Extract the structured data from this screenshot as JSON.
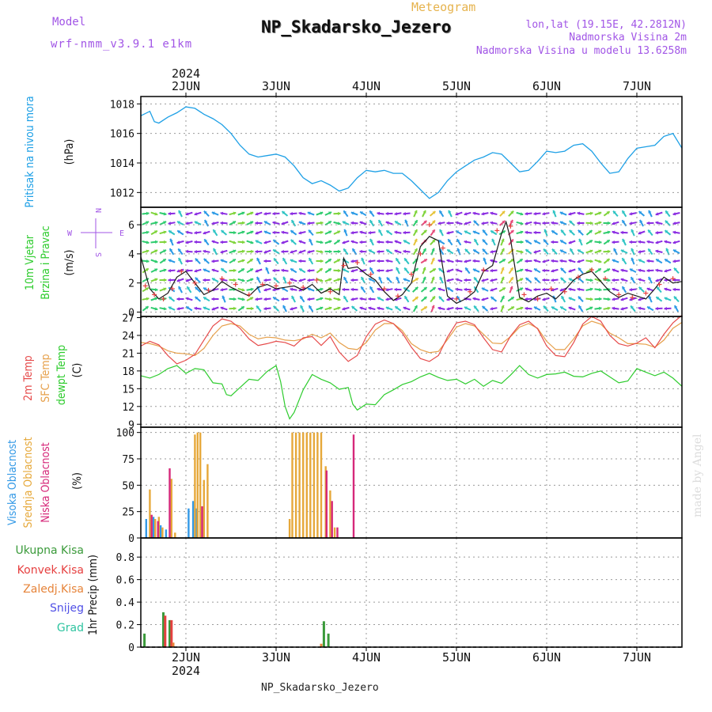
{
  "header": {
    "model_label": "Model",
    "model_name": "wrf-nmm_v3.9.1 e1km",
    "meteogram_label": "Meteogram",
    "station_title": "NP_Skadarsko_Jezero",
    "coord_line": "lon,lat (19.15E, 42.2812N)",
    "elev_line": "Nadmorska Visina 2m",
    "model_elev_line": "Nadmorska Visina u modelu 13.6258m",
    "footer_station": "NP_Skadarsko_Jezero",
    "credit": "made by Angel"
  },
  "colors": {
    "pressure": "#1ea0e6",
    "wind_speed": "#1a1a1a",
    "gust": "#e64040",
    "temp2m": "#e64b4b",
    "sfc_temp": "#e6a04b",
    "dewpt": "#2ecc2e",
    "high_cloud": "#3399e6",
    "mid_cloud": "#e6a83a",
    "low_cloud": "#d6287a",
    "total_rain": "#3a9a3a",
    "conv_rain": "#e64040",
    "frozen_rain": "#e6843a",
    "snow": "#5050e6",
    "hail": "#2ec4a0"
  },
  "chart_data": [
    {
      "type": "line",
      "panel": "pressure",
      "ylabel_main": "Pritisak na nivou mora",
      "unit": "(hPa)",
      "ylim": [
        1011,
        1018.5
      ],
      "yticks": [
        1012,
        1014,
        1016,
        1018
      ],
      "x_range_days": [
        1.5,
        7.5
      ],
      "x_top_labels": [
        "2JUN",
        "3JUN",
        "4JUN",
        "5JUN",
        "6JUN",
        "7JUN"
      ],
      "x_top_year": "2024",
      "x": [
        1.5,
        1.6,
        1.65,
        1.7,
        1.8,
        1.9,
        2.0,
        2.1,
        2.2,
        2.3,
        2.4,
        2.5,
        2.6,
        2.7,
        2.8,
        2.9,
        3.0,
        3.1,
        3.2,
        3.3,
        3.4,
        3.5,
        3.6,
        3.7,
        3.8,
        3.9,
        4.0,
        4.1,
        4.2,
        4.3,
        4.4,
        4.5,
        4.6,
        4.7,
        4.8,
        4.9,
        5.0,
        5.1,
        5.2,
        5.3,
        5.4,
        5.5,
        5.6,
        5.7,
        5.8,
        5.9,
        6.0,
        6.1,
        6.2,
        6.3,
        6.4,
        6.5,
        6.6,
        6.7,
        6.8,
        6.9,
        7.0,
        7.1,
        7.2,
        7.3,
        7.4,
        7.5
      ],
      "values": [
        1017.2,
        1017.5,
        1016.8,
        1016.7,
        1017.1,
        1017.4,
        1017.8,
        1017.7,
        1017.3,
        1017.0,
        1016.6,
        1016.0,
        1015.2,
        1014.6,
        1014.4,
        1014.5,
        1014.6,
        1014.4,
        1013.8,
        1013.0,
        1012.6,
        1012.8,
        1012.5,
        1012.1,
        1012.3,
        1013.0,
        1013.5,
        1013.4,
        1013.5,
        1013.3,
        1013.3,
        1012.8,
        1012.2,
        1011.6,
        1012.0,
        1012.8,
        1013.4,
        1013.8,
        1014.2,
        1014.4,
        1014.7,
        1014.6,
        1014.0,
        1013.4,
        1013.5,
        1014.1,
        1014.8,
        1014.7,
        1014.8,
        1015.2,
        1015.3,
        1014.8,
        1014.0,
        1013.3,
        1013.4,
        1014.3,
        1015.0,
        1015.1,
        1015.2,
        1015.8,
        1016.0,
        1015.0
      ]
    },
    {
      "type": "line",
      "panel": "wind",
      "ylabel_main": "10m Vjetar",
      "ylabel_sub": "Brzina i Pravac",
      "unit": "(m/s)",
      "compass_labels": [
        "N",
        "W",
        "E",
        "S"
      ],
      "ylim": [
        -0.3,
        7.2
      ],
      "yticks": [
        0,
        2,
        4,
        6
      ],
      "wind_speed_x": [
        1.5,
        1.6,
        1.7,
        1.8,
        1.9,
        2.0,
        2.1,
        2.2,
        2.3,
        2.4,
        2.5,
        2.6,
        2.7,
        2.8,
        2.9,
        3.0,
        3.1,
        3.2,
        3.3,
        3.4,
        3.5,
        3.6,
        3.7,
        3.75,
        3.8,
        3.9,
        4.0,
        4.1,
        4.2,
        4.3,
        4.4,
        4.5,
        4.55,
        4.6,
        4.7,
        4.8,
        4.9,
        5.0,
        5.1,
        5.2,
        5.3,
        5.4,
        5.5,
        5.55,
        5.6,
        5.7,
        5.8,
        5.9,
        6.0,
        6.1,
        6.2,
        6.3,
        6.4,
        6.5,
        6.6,
        6.7,
        6.8,
        6.9,
        7.0,
        7.1,
        7.2,
        7.3,
        7.4,
        7.5
      ],
      "wind_speed": [
        3.8,
        1.6,
        0.9,
        1.3,
        2.4,
        2.8,
        2.0,
        1.2,
        1.5,
        2.1,
        1.7,
        1.4,
        1.1,
        1.7,
        1.9,
        1.6,
        1.7,
        1.8,
        1.5,
        1.9,
        1.3,
        1.6,
        1.2,
        3.7,
        3.0,
        3.1,
        2.6,
        2.2,
        1.4,
        0.8,
        1.2,
        2.0,
        3.3,
        4.5,
        5.2,
        4.9,
        1.1,
        0.6,
        0.9,
        1.4,
        2.8,
        3.2,
        5.4,
        6.2,
        5.0,
        1.0,
        0.7,
        1.1,
        1.3,
        0.9,
        1.5,
        2.2,
        2.6,
        2.8,
        2.1,
        1.4,
        1.0,
        1.3,
        1.1,
        0.9,
        1.6,
        2.4,
        2.0,
        2.1
      ],
      "gust_x": [
        1.55,
        1.65,
        1.75,
        1.85,
        1.95,
        2.1,
        2.25,
        2.4,
        2.55,
        2.7,
        2.85,
        3.0,
        3.15,
        3.3,
        3.45,
        3.6,
        3.75,
        3.9,
        4.05,
        4.2,
        4.35,
        4.5,
        4.6,
        4.7,
        4.85,
        5.0,
        5.15,
        5.3,
        5.45,
        5.6,
        5.75,
        5.9,
        6.05,
        6.2,
        6.35,
        6.5,
        6.65,
        6.8,
        6.95,
        7.1,
        7.25,
        7.4
      ],
      "gust": [
        1.8,
        1.2,
        0.9,
        1.6,
        2.8,
        2.0,
        1.5,
        2.3,
        1.9,
        1.2,
        1.9,
        1.8,
        2.0,
        1.7,
        2.2,
        1.4,
        3.2,
        3.4,
        2.6,
        1.6,
        1.1,
        2.6,
        4.0,
        6.0,
        4.4,
        0.9,
        1.4,
        2.9,
        5.6,
        5.9,
        1.2,
        0.9,
        1.6,
        1.4,
        2.4,
        2.9,
        2.3,
        1.2,
        1.0,
        1.3,
        1.9,
        2.3
      ],
      "legend": []
    },
    {
      "type": "line",
      "panel": "temperature",
      "ylabel_lines": [
        "2m Temp",
        "SFC Temp",
        "dewpt Temp"
      ],
      "unit": "(C)",
      "ylim": [
        8.5,
        27.2
      ],
      "yticks": [
        9,
        12,
        15,
        18,
        21,
        24,
        27
      ],
      "temp_x": [
        1.5,
        1.6,
        1.7,
        1.8,
        1.9,
        2.0,
        2.1,
        2.2,
        2.3,
        2.4,
        2.5,
        2.6,
        2.7,
        2.8,
        2.9,
        3.0,
        3.1,
        3.2,
        3.3,
        3.4,
        3.5,
        3.6,
        3.7,
        3.8,
        3.9,
        4.0,
        4.1,
        4.2,
        4.3,
        4.4,
        4.5,
        4.6,
        4.7,
        4.8,
        4.9,
        5.0,
        5.1,
        5.2,
        5.3,
        5.4,
        5.5,
        5.6,
        5.7,
        5.8,
        5.9,
        6.0,
        6.1,
        6.2,
        6.3,
        6.4,
        6.5,
        6.6,
        6.7,
        6.8,
        6.9,
        7.0,
        7.1,
        7.2,
        7.3,
        7.4,
        7.5
      ],
      "temp2m": [
        22.2,
        23.0,
        22.4,
        20.6,
        19.2,
        19.8,
        20.8,
        23.2,
        25.6,
        26.8,
        26.4,
        25.2,
        23.4,
        22.3,
        22.6,
        23.0,
        22.8,
        22.2,
        23.6,
        23.8,
        22.3,
        23.8,
        21.2,
        19.6,
        20.6,
        23.8,
        25.9,
        26.6,
        26.0,
        24.4,
        22.0,
        20.1,
        19.6,
        20.6,
        23.7,
        26.1,
        26.4,
        25.8,
        23.6,
        21.6,
        21.2,
        23.9,
        25.8,
        26.4,
        25.1,
        22.2,
        20.6,
        20.4,
        22.8,
        25.9,
        27.2,
        26.4,
        24.0,
        22.6,
        22.2,
        22.7,
        23.6,
        21.9,
        24.2,
        26.1,
        27.4
      ],
      "sfc_temp": [
        22.8,
        22.6,
        22.2,
        21.4,
        21.0,
        20.9,
        20.6,
        21.8,
        24.0,
        25.6,
        26.0,
        25.6,
        24.2,
        23.4,
        23.7,
        23.6,
        23.2,
        23.1,
        23.4,
        24.2,
        23.6,
        24.4,
        22.8,
        21.8,
        21.6,
        22.8,
        24.9,
        26.0,
        26.0,
        24.8,
        22.6,
        21.6,
        21.1,
        21.3,
        23.3,
        25.4,
        26.0,
        25.6,
        24.2,
        22.7,
        22.6,
        23.8,
        25.4,
        26.0,
        25.2,
        23.0,
        21.6,
        21.6,
        23.4,
        25.6,
        26.4,
        25.9,
        24.4,
        23.6,
        22.6,
        22.6,
        22.5,
        22.0,
        23.2,
        25.2,
        26.2
      ],
      "dewpt_x": [
        1.5,
        1.6,
        1.7,
        1.8,
        1.9,
        2.0,
        2.1,
        2.2,
        2.3,
        2.4,
        2.45,
        2.5,
        2.6,
        2.7,
        2.8,
        2.9,
        3.0,
        3.05,
        3.1,
        3.15,
        3.2,
        3.3,
        3.4,
        3.5,
        3.6,
        3.7,
        3.8,
        3.85,
        3.9,
        4.0,
        4.1,
        4.2,
        4.3,
        4.4,
        4.5,
        4.6,
        4.7,
        4.8,
        4.9,
        5.0,
        5.1,
        5.2,
        5.3,
        5.4,
        5.5,
        5.6,
        5.7,
        5.8,
        5.9,
        6.0,
        6.1,
        6.2,
        6.3,
        6.4,
        6.5,
        6.6,
        6.7,
        6.8,
        6.9,
        7.0,
        7.1,
        7.2,
        7.3,
        7.4,
        7.5
      ],
      "dewpt": [
        17.2,
        16.8,
        17.4,
        18.4,
        18.9,
        17.6,
        18.4,
        18.2,
        16.0,
        15.8,
        14.0,
        13.8,
        15.2,
        16.6,
        16.4,
        17.9,
        18.9,
        16.2,
        12.0,
        9.9,
        11.0,
        14.8,
        17.4,
        16.6,
        16.0,
        14.9,
        15.2,
        12.4,
        11.4,
        12.4,
        12.3,
        14.0,
        14.8,
        15.7,
        16.2,
        17.0,
        17.6,
        16.9,
        16.4,
        16.6,
        15.8,
        16.6,
        15.4,
        16.4,
        15.9,
        17.3,
        18.9,
        17.4,
        16.8,
        17.4,
        17.5,
        17.8,
        17.1,
        17.0,
        17.6,
        18.0,
        17.0,
        16.0,
        16.3,
        18.4,
        17.8,
        17.2,
        17.8,
        16.8,
        15.4
      ]
    },
    {
      "type": "bar",
      "panel": "clouds",
      "ylabel_lines": [
        "Visoka Oblacnost",
        "Srednja Oblacnost",
        "Niska Oblacnost"
      ],
      "unit": "(%)",
      "ylim": [
        0,
        105
      ],
      "yticks": [
        0,
        25,
        50,
        75,
        100
      ],
      "series": [
        {
          "name": "Visoka Oblacnost",
          "x": [
            1.56,
            1.64,
            1.72,
            1.78,
            2.03,
            2.08,
            2.12
          ],
          "values": [
            18,
            20,
            12,
            8,
            28,
            35,
            28
          ]
        },
        {
          "name": "Srednja Oblacnost",
          "x": [
            1.6,
            1.66,
            1.7,
            1.74,
            1.84,
            1.88,
            2.1,
            2.13,
            2.16,
            2.2,
            2.24,
            3.15,
            3.18,
            3.22,
            3.26,
            3.3,
            3.34,
            3.38,
            3.42,
            3.46,
            3.5,
            3.55,
            3.6,
            3.65
          ],
          "values": [
            46,
            18,
            20,
            10,
            56,
            5,
            98,
            100,
            100,
            55,
            70,
            18,
            100,
            100,
            100,
            100,
            100,
            100,
            100,
            100,
            100,
            68,
            45,
            10
          ]
        },
        {
          "name": "Niska Oblacnost",
          "x": [
            1.62,
            1.69,
            1.82,
            2.18,
            3.56,
            3.62,
            3.68,
            3.86
          ],
          "values": [
            22,
            16,
            66,
            30,
            64,
            35,
            10,
            98
          ]
        }
      ]
    },
    {
      "type": "bar",
      "panel": "precip",
      "ylabel_lines": [
        "Ukupna Kisa",
        "Konvek.Kisa",
        "Zaledj.Kisa",
        "Snijeg",
        "Grad"
      ],
      "unit": "1hr Precip (mm)",
      "ylim": [
        0,
        0.97
      ],
      "yticks": [
        0,
        0.2,
        0.4,
        0.6,
        0.8
      ],
      "x_bottom_labels": [
        "2JUN",
        "3JUN",
        "4JUN",
        "5JUN",
        "6JUN",
        "7JUN"
      ],
      "x_bottom_year": "2024",
      "series": [
        {
          "name": "Ukupna Kisa",
          "x": [
            1.54,
            1.75,
            1.82,
            3.53,
            3.58
          ],
          "values": [
            0.12,
            0.31,
            0.24,
            0.23,
            0.12
          ]
        },
        {
          "name": "Konvek.Kisa",
          "x": [
            1.77,
            1.84
          ],
          "values": [
            0.28,
            0.24
          ]
        },
        {
          "name": "Zaledj.Kisa",
          "x": [
            1.86,
            3.5
          ],
          "values": [
            0.04,
            0.03
          ]
        }
      ]
    }
  ]
}
